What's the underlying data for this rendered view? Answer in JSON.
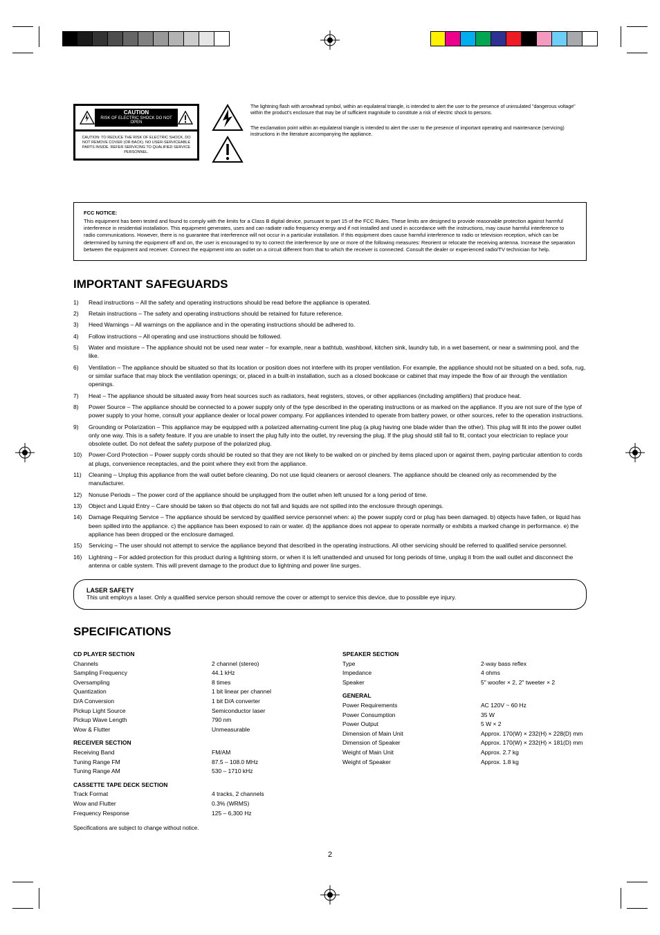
{
  "swatches": {
    "gray": [
      "#000000",
      "#1a1a1a",
      "#333333",
      "#4d4d4d",
      "#666666",
      "#808080",
      "#999999",
      "#b3b3b3",
      "#cccccc",
      "#e6e6e6",
      "#ffffff"
    ],
    "color": [
      "#fff200",
      "#ec008c",
      "#00aeef",
      "#00a651",
      "#2e3192",
      "#ed1c24",
      "#000000",
      "#f49ac1",
      "#6dcff6",
      "#a7a9ac",
      "#ffffff"
    ]
  },
  "caution": {
    "label_top": "CAUTION",
    "label_bottom": "RISK OF ELECTRIC SHOCK DO NOT OPEN",
    "body": "CAUTION: TO REDUCE THE RISK OF ELECTRIC SHOCK, DO NOT REMOVE COVER (OR BACK). NO USER-SERVICEABLE PARTS INSIDE. REFER SERVICING TO QUALIFIED SERVICE PERSONNEL."
  },
  "icon_text": {
    "bolt": "The lightning flash with arrowhead symbol, within an equilateral triangle, is intended to alert the user to the presence of uninsulated \"dangerous voltage\" within the product's enclosure that may be of sufficient magnitude to constitute a risk of electric shock to persons.",
    "exclaim": "The exclamation point within an equilateral triangle is intended to alert the user to the presence of important operating and maintenance (servicing) instructions in the literature accompanying the appliance."
  },
  "fcc": {
    "heading": "FCC NOTICE:",
    "body": "This equipment has been tested and found to comply with the limits for a Class B digital device, pursuant to part 15 of the FCC Rules. These limits are designed to provide reasonable protection against harmful interference in residential installation. This equipment generates, uses and can radiate radio frequency energy and if not installed and used in accordance with the instructions, may cause harmful interference to radio communications. However, there is no guarantee that interference will not occur in a particular installation. If this equipment does cause harmful interference to radio or television reception, which can be determined by turning the equipment off and on, the user is encouraged to try to correct the interference by one or more of the following measures: Reorient or relocate the receiving antenna. Increase the separation between the equipment and receiver. Connect the equipment into an outlet on a circuit different from that to which the receiver is connected. Consult the dealer or experienced radio/TV technician for help."
  },
  "safeguards": {
    "title": "IMPORTANT SAFEGUARDS",
    "items": [
      "Read instructions – All the safety and operating instructions should be read before the appliance is operated.",
      "Retain instructions – The safety and operating instructions should be retained for future reference.",
      "Heed Warnings – All warnings on the appliance and in the operating instructions should be adhered to.",
      "Follow instructions – All operating and use instructions should be followed.",
      "Water and moisture – The appliance should not be used near water – for example, near a bathtub, washbowl, kitchen sink, laundry tub, in a wet basement, or near a swimming pool, and the like.",
      "Ventilation – The appliance should be situated so that its location or position does not interfere with its proper ventilation. For example, the appliance should not be situated on a bed, sofa, rug, or similar surface that may block the ventilation openings; or, placed in a built-in installation, such as a closed bookcase or cabinet that may impede the flow of air through the ventilation openings.",
      "Heat – The appliance should be situated away from heat sources such as radiators, heat registers, stoves, or other appliances (including amplifiers) that produce heat.",
      "Power Source – The appliance should be connected to a power supply only of the type described in the operating instructions or as marked on the appliance. If you are not sure of the type of power supply to your home, consult your appliance dealer or local power company. For appliances intended to operate from battery power, or other sources, refer to the operation instructions.",
      "Grounding or Polarization – This appliance may be equipped with a polarized alternating-current line plug (a plug having one blade wider than the other). This plug will fit into the power outlet only one way. This is a safety feature. If you are unable to insert the plug fully into the outlet, try reversing the plug. If the plug should still fail to fit, contact your electrician to replace your obsolete outlet. Do not defeat the safety purpose of the polarized plug.",
      "Power-Cord Protection – Power supply cords should be routed so that they are not likely to be walked on or pinched by items placed upon or against them, paying particular attention to cords at plugs, convenience receptacles, and the point where they exit from the appliance.",
      "Cleaning – Unplug this appliance from the wall outlet before cleaning. Do not use liquid cleaners or aerosol cleaners. The appliance should be cleaned only as recommended by the manufacturer.",
      "Nonuse Periods – The power cord of the appliance should be unplugged from the outlet when left unused for a long period of time.",
      "Object and Liquid Entry – Care should be taken so that objects do not fall and liquids are not spilled into the enclosure through openings.",
      "Damage Requiring Service – The appliance should be serviced by qualified service personnel when: a) the power supply cord or plug has been damaged. b) objects have fallen, or liquid has been spilled into the appliance. c) the appliance has been exposed to rain or water. d) the appliance does not appear to operate normally or exhibits a marked change in performance. e) the appliance has been dropped or the enclosure damaged.",
      "Servicing – The user should not attempt to service the appliance beyond that described in the operating instructions. All other servicing should be referred to qualified service personnel.",
      "Lightning – For added protection for this product during a lightning storm, or when it is left unattended and unused for long periods of time, unplug it from the wall outlet and disconnect the antenna or cable system. This will prevent damage to the product due to lightning and power line surges."
    ]
  },
  "laser": {
    "heading": "LASER SAFETY",
    "body": "This unit employs a laser. Only a qualified service person should remove the cover or attempt to service this device, due to possible eye injury."
  },
  "specs": {
    "title": "SPECIFICATIONS",
    "left": {
      "group1": "CD PLAYER SECTION",
      "rows1": [
        [
          "Channels",
          "2 channel (stereo)"
        ],
        [
          "Sampling Frequency",
          "44.1 kHz"
        ],
        [
          "Oversampling",
          "8 times"
        ],
        [
          "Quantization",
          "1 bit linear per channel"
        ],
        [
          "D/A Conversion",
          "1 bit D/A converter"
        ],
        [
          "Pickup Light Source",
          "Semiconductor laser"
        ],
        [
          "Pickup Wave Length",
          "790 nm"
        ],
        [
          "Wow & Flutter",
          "Unmeasurable"
        ]
      ],
      "group2": "RECEIVER SECTION",
      "rows2": [
        [
          "Receiving Band",
          "FM/AM"
        ],
        [
          "Tuning Range FM",
          "87.5 – 108.0 MHz"
        ],
        [
          "Tuning Range AM",
          "530 – 1710 kHz"
        ]
      ],
      "group3": "CASSETTE TAPE DECK SECTION",
      "rows3": [
        [
          "Track Format",
          "4 tracks, 2 channels"
        ],
        [
          "Wow and Flutter",
          "0.3% (WRMS)"
        ],
        [
          "Frequency Response",
          "125 – 6,300 Hz"
        ]
      ]
    },
    "right": {
      "group1": "SPEAKER SECTION",
      "rows1": [
        [
          "Type",
          "2-way bass reflex"
        ],
        [
          "Impedance",
          "4 ohms"
        ],
        [
          "Speaker",
          "5\" woofer × 2, 2\" tweeter × 2"
        ]
      ],
      "group2": "GENERAL",
      "rows2": [
        [
          "Power Requirements",
          "AC 120V ~ 60 Hz"
        ],
        [
          "Power Consumption",
          "35 W"
        ],
        [
          "Power Output",
          "5 W × 2"
        ],
        [
          "Dimension of Main Unit",
          "Approx. 170(W) × 232(H) × 228(D) mm"
        ],
        [
          "Dimension of Speaker",
          "Approx. 170(W) × 232(H) × 181(D) mm"
        ],
        [
          "Weight of Main Unit",
          "Approx. 2.7 kg"
        ],
        [
          "Weight of Speaker",
          "Approx. 1.8 kg"
        ]
      ]
    },
    "note": "Specifications are subject to change without notice."
  },
  "page_number": "2",
  "footer": {
    "left": "",
    "right": ""
  }
}
